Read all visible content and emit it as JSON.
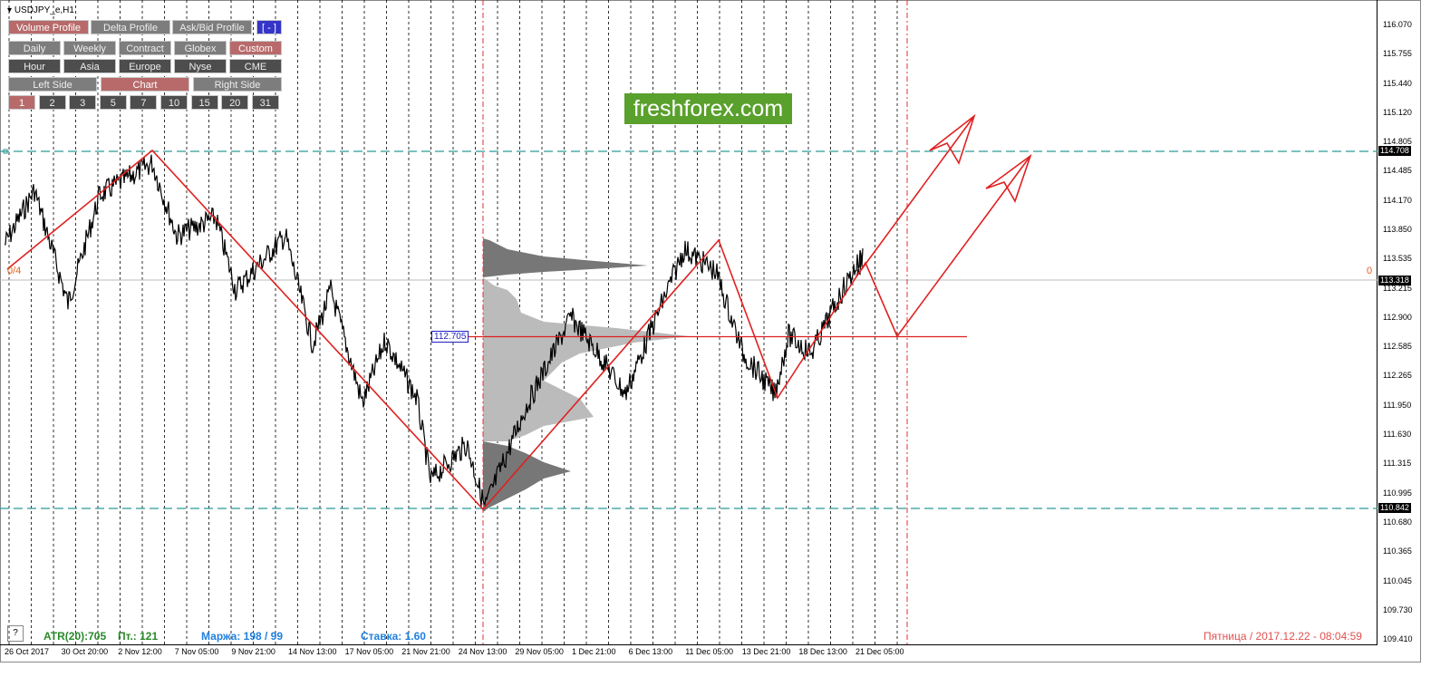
{
  "window": {
    "symbol": "USDJPY_e,H1",
    "help": "?"
  },
  "toolbar": {
    "profiles": [
      "Volume Profile",
      "Delta Profile",
      "Ask/Bid Profile",
      "[ - ]"
    ],
    "periods": [
      "Daily",
      "Weekly",
      "Contract",
      "Globex",
      "Custom"
    ],
    "sessions": [
      "Hour",
      "Asia",
      "Europe",
      "Nyse",
      "CME"
    ],
    "sides": [
      "Left Side",
      "Chart",
      "Right Side"
    ],
    "counts": [
      "1",
      "2",
      "3",
      "5",
      "7",
      "10",
      "15",
      "20",
      "31"
    ]
  },
  "watermark": "freshforex.com",
  "price_axis": [
    "116.070",
    "115.755",
    "115.440",
    "115.120",
    "114.805",
    "114.485",
    "114.170",
    "113.850",
    "113.535",
    "113.215",
    "112.900",
    "112.585",
    "112.265",
    "111.950",
    "111.630",
    "111.315",
    "110.995",
    "110.680",
    "110.365",
    "110.045",
    "109.730",
    "109.410"
  ],
  "price_markers": {
    "high_level": "114.708",
    "current": "113.318",
    "low_level": "110.842"
  },
  "poc_label": "112.705",
  "side_labels": {
    "left": "0/4",
    "right": "0"
  },
  "time_axis": [
    "26 Oct 2017",
    "30 Oct 20:00",
    "2 Nov 12:00",
    "7 Nov 05:00",
    "9 Nov 21:00",
    "14 Nov 13:00",
    "17 Nov 05:00",
    "21 Nov 21:00",
    "24 Nov 13:00",
    "29 Nov 05:00",
    "1 Dec 21:00",
    "6 Dec 13:00",
    "11 Dec 05:00",
    "13 Dec 21:00",
    "18 Dec 13:00",
    "21 Dec 05:00"
  ],
  "status": {
    "atr": "ATR(20):705",
    "day": "Пт.: 121",
    "margin": "Маржа: 198 / 99",
    "rate": "Ставка: 1.60",
    "datetime": "Пятница / 2017.12.22 - 08:04:59"
  }
}
